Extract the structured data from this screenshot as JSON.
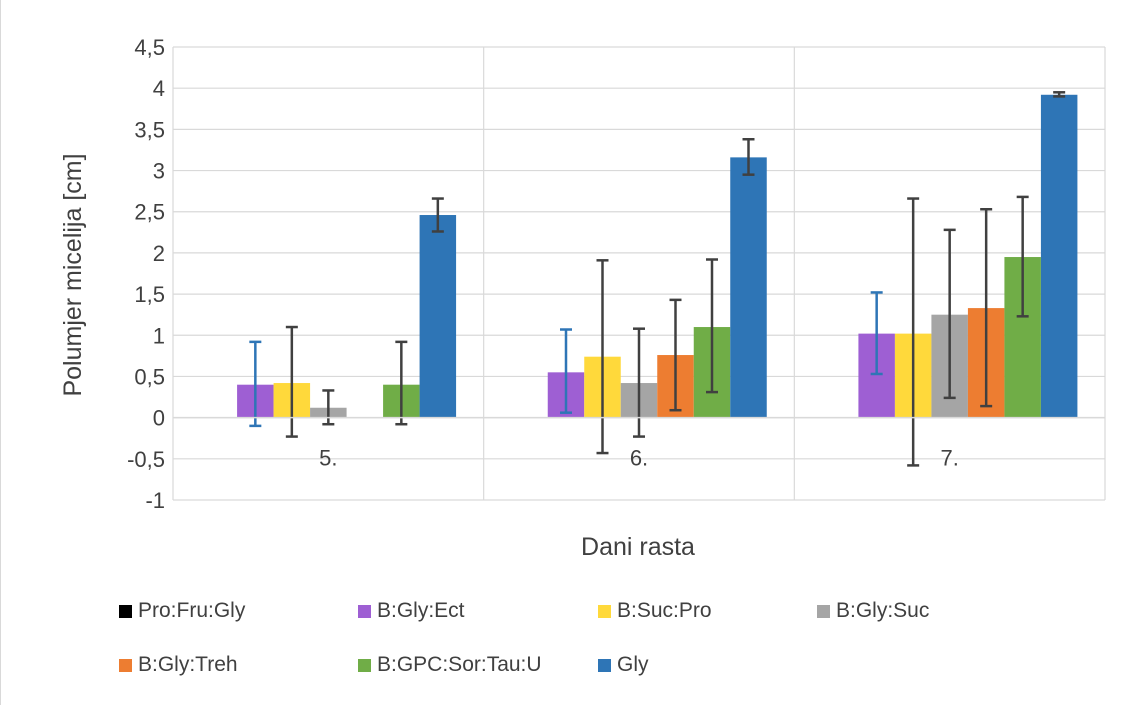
{
  "chart_data": {
    "type": "bar",
    "xlabel": "Dani rasta",
    "ylabel": "Polumjer micelija [cm]",
    "ylim": [
      -1,
      4.5
    ],
    "ytick_step": 0.5,
    "grid": true,
    "legend_position": "bottom",
    "categories": [
      "5.",
      "6.",
      "7."
    ],
    "series": [
      {
        "name": "Pro:Fru:Gly",
        "color": "#000000",
        "values": [
          0,
          0,
          0
        ],
        "err_low": [
          0,
          0,
          0
        ],
        "err_high": [
          0,
          0,
          0
        ],
        "err_color": "#404040"
      },
      {
        "name": "B:Gly:Ect",
        "color": "#9E5FD3",
        "values": [
          0.4,
          0.55,
          1.02
        ],
        "err_low": [
          -0.1,
          0.06,
          0.53
        ],
        "err_high": [
          0.92,
          1.07,
          1.52
        ],
        "err_color": "#2E75B6"
      },
      {
        "name": "B:Suc:Pro",
        "color": "#FFD93B",
        "values": [
          0.42,
          0.74,
          1.02
        ],
        "err_low": [
          -0.23,
          -0.43,
          -0.58
        ],
        "err_high": [
          1.1,
          1.91,
          2.66
        ],
        "err_color": "#404040"
      },
      {
        "name": "B:Gly:Suc",
        "color": "#A5A5A5",
        "values": [
          0.12,
          0.42,
          1.25
        ],
        "err_low": [
          -0.08,
          -0.23,
          0.24
        ],
        "err_high": [
          0.33,
          1.08,
          2.28
        ],
        "err_color": "#404040"
      },
      {
        "name": "B:Gly:Treh",
        "color": "#ED7D31",
        "values": [
          0,
          0.76,
          1.33
        ],
        "err_low": [
          0,
          0.09,
          0.14
        ],
        "err_high": [
          0,
          1.43,
          2.53
        ],
        "err_color": "#404040"
      },
      {
        "name": "B:GPC:Sor:Tau:U",
        "color": "#70AD47",
        "values": [
          0.4,
          1.1,
          1.95
        ],
        "err_low": [
          -0.08,
          0.31,
          1.23
        ],
        "err_high": [
          0.92,
          1.92,
          2.68
        ],
        "err_color": "#404040"
      },
      {
        "name": "Gly",
        "color": "#2E75B6",
        "values": [
          2.46,
          3.16,
          3.92
        ],
        "err_low": [
          2.26,
          2.95,
          3.9
        ],
        "err_high": [
          2.66,
          3.38,
          3.95
        ],
        "err_color": "#404040"
      }
    ]
  }
}
